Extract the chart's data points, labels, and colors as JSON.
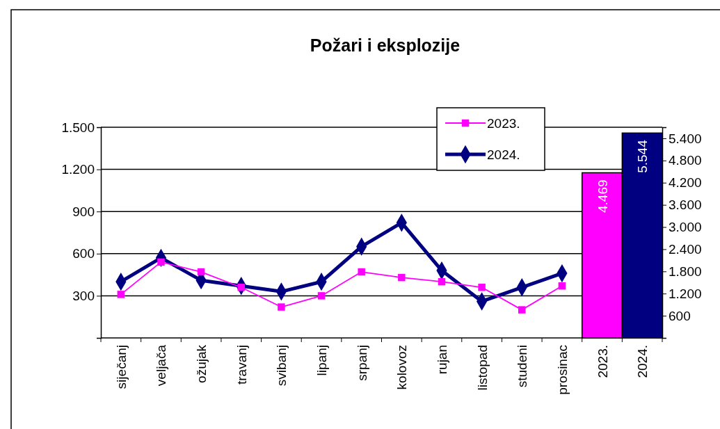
{
  "chart_data": {
    "type": "line",
    "title": "Požari i eksplozije",
    "categories": [
      "siječanj",
      "veljača",
      "ožujak",
      "travanj",
      "svibanj",
      "lipanj",
      "srpanj",
      "kolovoz",
      "rujan",
      "listopad",
      "studeni",
      "prosinac",
      "2023.",
      "2024."
    ],
    "series": [
      {
        "name": "2023.",
        "color": "#ff00ff",
        "marker": "square",
        "values": [
          310,
          540,
          470,
          360,
          220,
          300,
          470,
          430,
          400,
          360,
          200,
          370,
          null,
          null
        ]
      },
      {
        "name": "2024.",
        "color": "#000080",
        "marker": "diamond",
        "values": [
          400,
          570,
          410,
          370,
          330,
          400,
          650,
          820,
          480,
          260,
          360,
          460,
          null,
          null
        ]
      },
      {
        "type": "bar",
        "axis": "y2",
        "colors": [
          null,
          null,
          null,
          null,
          null,
          null,
          null,
          null,
          null,
          null,
          null,
          null,
          "#ff00ff",
          "#000080"
        ],
        "values": [
          null,
          null,
          null,
          null,
          null,
          null,
          null,
          null,
          null,
          null,
          null,
          null,
          4469,
          5544
        ],
        "value_labels": [
          null,
          null,
          null,
          null,
          null,
          null,
          null,
          null,
          null,
          null,
          null,
          null,
          "4.469",
          "5.544"
        ]
      }
    ],
    "ylim": [
      0,
      1500
    ],
    "yticks": [
      {
        "value": 0,
        "label": null
      },
      {
        "value": 300,
        "label": "300"
      },
      {
        "value": 600,
        "label": "600"
      },
      {
        "value": 900,
        "label": "900"
      },
      {
        "value": 1200,
        "label": "1.200"
      },
      {
        "value": 1500,
        "label": "1.500"
      }
    ],
    "y2lim": [
      0,
      5700
    ],
    "y2ticks": [
      {
        "value": 0,
        "label": null
      },
      {
        "value": 600,
        "label": "600"
      },
      {
        "value": 1200,
        "label": "1.200"
      },
      {
        "value": 1800,
        "label": "1.800"
      },
      {
        "value": 2400,
        "label": "2.400"
      },
      {
        "value": 3000,
        "label": "3.000"
      },
      {
        "value": 3600,
        "label": "3.600"
      },
      {
        "value": 4200,
        "label": "4.200"
      },
      {
        "value": 4800,
        "label": "4.800"
      },
      {
        "value": 5400,
        "label": "5.400"
      }
    ],
    "grid": "y",
    "legend": "top right"
  }
}
